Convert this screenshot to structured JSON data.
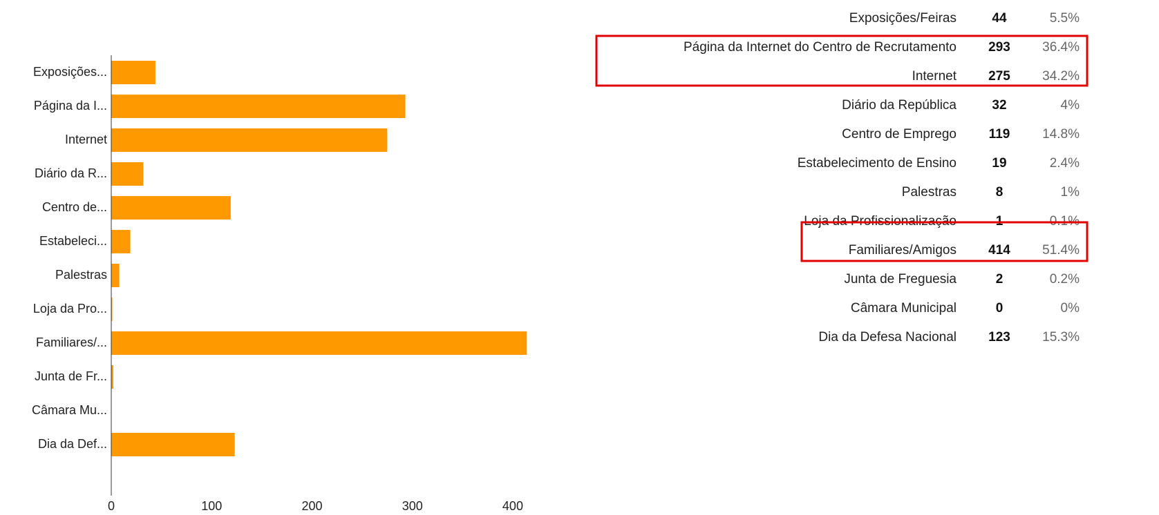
{
  "chart_data": {
    "type": "bar",
    "categories": [
      "Exposições...",
      "Página da I...",
      "Internet",
      "Diário da R...",
      "Centro de...",
      "Estabeleci...",
      "Palestras",
      "Loja da Pro...",
      "Familiares/...",
      "Junta de Fr...",
      "Câmara Mu...",
      "Dia da Def..."
    ],
    "values": [
      44,
      293,
      275,
      32,
      119,
      19,
      8,
      1,
      414,
      2,
      0,
      123
    ],
    "color": "#ff9900",
    "xlim": [
      0,
      420
    ],
    "xticks": [
      0,
      100,
      200,
      300,
      400
    ]
  },
  "table": {
    "labels": [
      "Exposições/Feiras",
      "Página da Internet do Centro de Recrutamento",
      "Internet",
      "Diário da República",
      "Centro de Emprego",
      "Estabelecimento de Ensino",
      "Palestras",
      "Loja da Profissionalização",
      "Familiares/Amigos",
      "Junta de Freguesia",
      "Câmara Municipal",
      "Dia da Defesa Nacional"
    ],
    "percents": [
      "5.5%",
      "36.4%",
      "34.2%",
      "4%",
      "14.8%",
      "2.4%",
      "1%",
      "0.1%",
      "51.4%",
      "0.2%",
      "0%",
      "15.3%"
    ]
  }
}
